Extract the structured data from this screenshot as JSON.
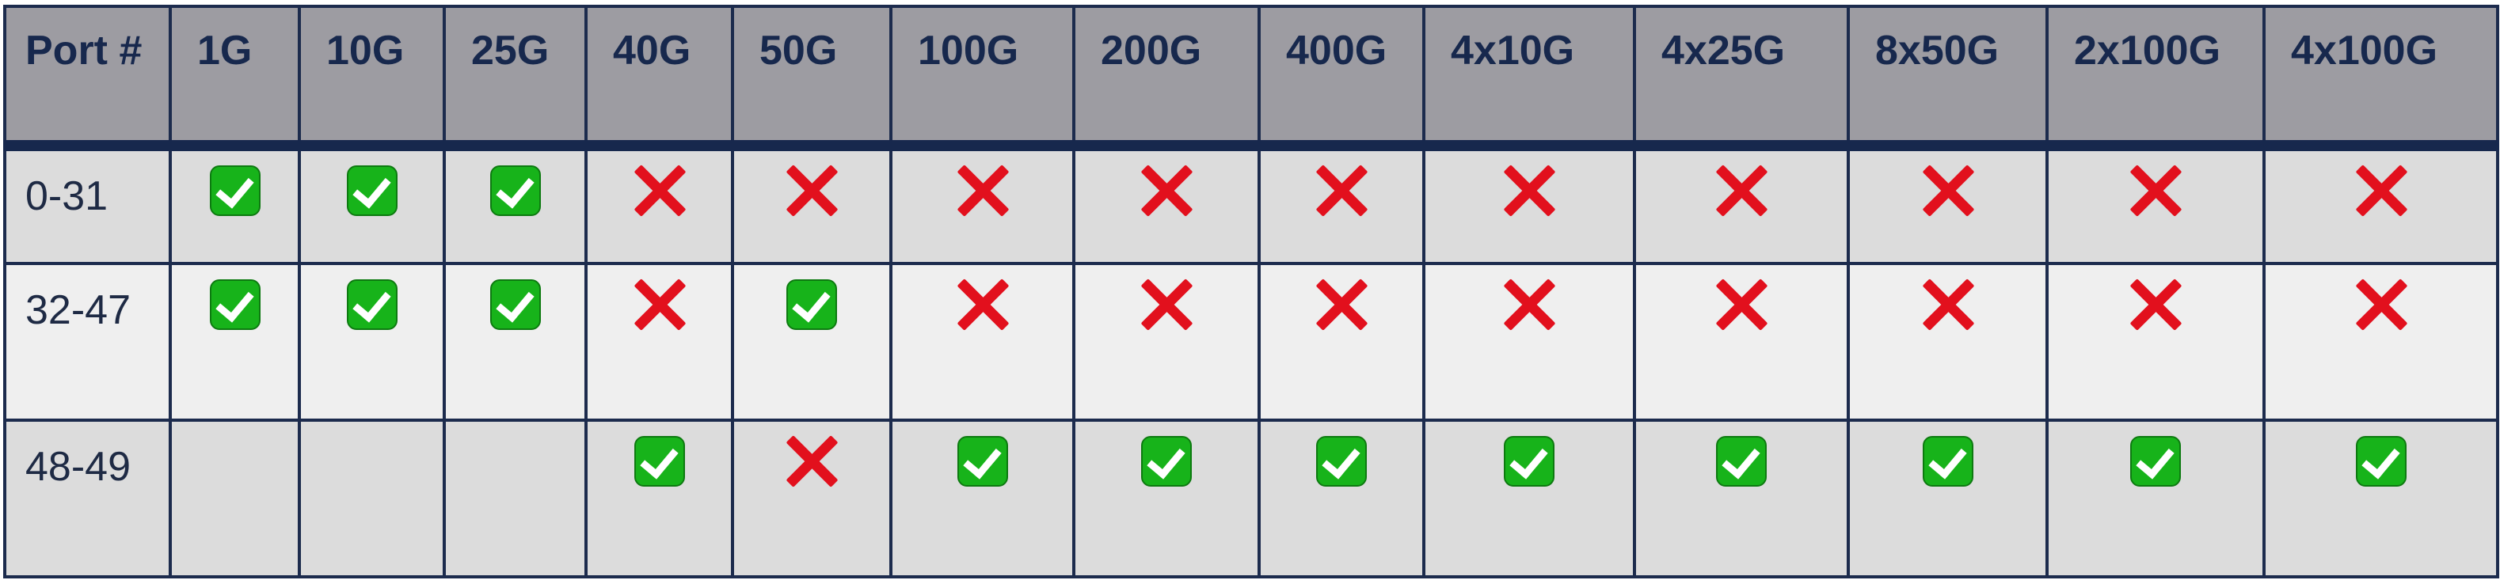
{
  "headers": [
    "Port #",
    "1G",
    "10G",
    "25G",
    "40G",
    "50G",
    "100G",
    "200G",
    "400G",
    "4x10G",
    "4x25G",
    "8x50G",
    "2x100G",
    "4x100G"
  ],
  "rows": [
    {
      "port": "0-31",
      "cells": [
        "check",
        "check",
        "check",
        "cross",
        "cross",
        "cross",
        "cross",
        "cross",
        "cross",
        "cross",
        "cross",
        "cross",
        "cross"
      ]
    },
    {
      "port": "32-47",
      "cells": [
        "check",
        "check",
        "check",
        "cross",
        "check",
        "cross",
        "cross",
        "cross",
        "cross",
        "cross",
        "cross",
        "cross",
        "cross"
      ]
    },
    {
      "port": "48-49",
      "cells": [
        "",
        "",
        "",
        "check",
        "cross",
        "check",
        "check",
        "check",
        "check",
        "check",
        "check",
        "check",
        "check"
      ]
    }
  ],
  "icons": {
    "check": "green-check-icon",
    "cross": "red-cross-icon"
  },
  "colors": {
    "header_bg": "#9d9ca2",
    "header_text": "#17284d",
    "row_dark": "#dcdcdc",
    "row_light": "#efefef",
    "border": "#1c2b4d",
    "check_green": "#17b31a",
    "cross_red": "#e2101d"
  }
}
